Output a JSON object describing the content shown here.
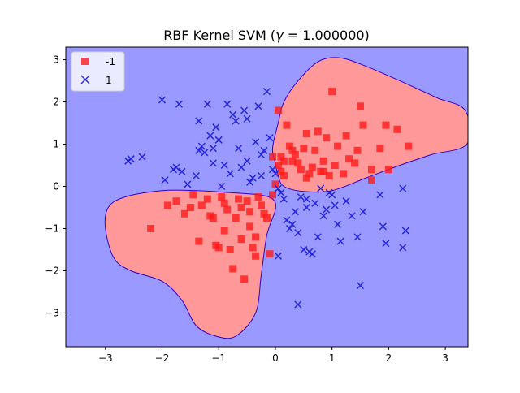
{
  "chart_data": {
    "type": "scatter",
    "title": "RBF Kernel SVM (γ = 1.000000)",
    "title_parts": {
      "prefix": "RBF Kernel SVM (",
      "symbol": "γ",
      "suffix": " = 1.000000)"
    },
    "xlabel": "",
    "ylabel": "",
    "xlim": [
      -3.7,
      3.4
    ],
    "ylim": [
      -3.8,
      3.3
    ],
    "x_ticks": [
      -3,
      -2,
      -1,
      0,
      1,
      2,
      3
    ],
    "y_ticks": [
      -3,
      -2,
      -1,
      0,
      1,
      2,
      3
    ],
    "tick_labels": {
      "x": [
        "−3",
        "−2",
        "−1",
        "0",
        "1",
        "2",
        "3"
      ],
      "y": [
        "−3",
        "−2",
        "−1",
        "0",
        "1",
        "2",
        "3"
      ]
    },
    "grid": false,
    "legend": {
      "placement": "top-left"
    },
    "colors": {
      "negative_region": "#9999ff",
      "positive_region": "#ff9999",
      "boundary": "#3300cc",
      "negative_marker": "#ff1a1a",
      "positive_marker": "#1a1ad9"
    },
    "decision_regions": [
      {
        "class": "-1",
        "label": "upper-right region",
        "boundary": [
          [
            0.0,
            0.55
          ],
          [
            -0.05,
            0.9
          ],
          [
            0.05,
            1.5
          ],
          [
            0.15,
            2.0
          ],
          [
            0.4,
            2.5
          ],
          [
            0.75,
            2.95
          ],
          [
            1.1,
            3.05
          ],
          [
            1.5,
            2.9
          ],
          [
            2.2,
            2.5
          ],
          [
            2.85,
            2.1
          ],
          [
            3.35,
            1.8
          ],
          [
            3.38,
            1.0
          ],
          [
            2.75,
            0.75
          ],
          [
            2.2,
            0.5
          ],
          [
            1.6,
            0.2
          ],
          [
            1.0,
            -0.1
          ],
          [
            0.5,
            -0.12
          ],
          [
            0.15,
            0.0
          ],
          [
            0.05,
            0.25
          ]
        ]
      },
      {
        "class": "-1",
        "label": "lower-left region",
        "boundary": [
          [
            -3.0,
            -1.0
          ],
          [
            -2.95,
            -0.5
          ],
          [
            -2.65,
            -0.25
          ],
          [
            -2.0,
            -0.1
          ],
          [
            -1.4,
            -0.1
          ],
          [
            -0.8,
            -0.15
          ],
          [
            -0.3,
            -0.2
          ],
          [
            -0.05,
            -0.3
          ],
          [
            0.0,
            -0.55
          ],
          [
            -0.15,
            -1.15
          ],
          [
            -0.25,
            -2.1
          ],
          [
            -0.35,
            -3.0
          ],
          [
            -0.7,
            -3.55
          ],
          [
            -1.05,
            -3.55
          ],
          [
            -1.4,
            -3.3
          ],
          [
            -1.65,
            -2.7
          ],
          [
            -2.0,
            -2.25
          ],
          [
            -2.55,
            -2.0
          ],
          [
            -2.85,
            -1.7
          ]
        ]
      }
    ],
    "series": [
      {
        "name": "-1",
        "marker": "square",
        "points": [
          [
            -2.2,
            -1.0
          ],
          [
            -1.9,
            -0.45
          ],
          [
            -1.75,
            -0.35
          ],
          [
            -1.6,
            -0.65
          ],
          [
            -1.5,
            -0.5
          ],
          [
            -1.45,
            -0.2
          ],
          [
            -1.35,
            -1.3
          ],
          [
            -1.3,
            -0.45
          ],
          [
            -1.2,
            -0.3
          ],
          [
            -1.15,
            -0.7
          ],
          [
            -1.1,
            -0.75
          ],
          [
            -1.05,
            -1.4
          ],
          [
            -1.0,
            -1.45
          ],
          [
            -0.95,
            -0.25
          ],
          [
            -0.9,
            -0.4
          ],
          [
            -0.85,
            -0.55
          ],
          [
            -0.8,
            -1.5
          ],
          [
            -0.75,
            -1.95
          ],
          [
            -0.7,
            -0.75
          ],
          [
            -0.65,
            -0.3
          ],
          [
            -0.6,
            -1.25
          ],
          [
            -0.55,
            -2.2
          ],
          [
            -0.5,
            -0.35
          ],
          [
            -0.45,
            -0.6
          ],
          [
            -0.4,
            -1.45
          ],
          [
            -0.35,
            -1.2
          ],
          [
            -0.3,
            -0.25
          ],
          [
            -0.25,
            -0.45
          ],
          [
            -0.2,
            -0.65
          ],
          [
            -0.15,
            -0.75
          ],
          [
            -0.1,
            -1.6
          ],
          [
            -0.05,
            -0.2
          ],
          [
            -0.35,
            -1.65
          ],
          [
            -0.6,
            -0.5
          ],
          [
            -0.9,
            -1.05
          ],
          [
            -0.45,
            -0.95
          ],
          [
            0.0,
            0.05
          ],
          [
            0.05,
            1.8
          ],
          [
            0.05,
            0.5
          ],
          [
            0.1,
            0.35
          ],
          [
            0.15,
            0.25
          ],
          [
            0.2,
            1.45
          ],
          [
            0.25,
            0.95
          ],
          [
            0.3,
            0.6
          ],
          [
            0.35,
            0.75
          ],
          [
            0.4,
            0.55
          ],
          [
            0.45,
            0.4
          ],
          [
            0.5,
            0.9
          ],
          [
            0.55,
            1.25
          ],
          [
            0.6,
            0.3
          ],
          [
            0.65,
            0.45
          ],
          [
            0.7,
            0.85
          ],
          [
            0.75,
            1.3
          ],
          [
            0.8,
            0.35
          ],
          [
            0.85,
            0.6
          ],
          [
            0.9,
            1.15
          ],
          [
            0.95,
            0.25
          ],
          [
            1.0,
            2.25
          ],
          [
            1.05,
            0.5
          ],
          [
            1.1,
            0.95
          ],
          [
            1.2,
            0.3
          ],
          [
            1.25,
            1.2
          ],
          [
            1.3,
            0.65
          ],
          [
            1.4,
            0.55
          ],
          [
            1.45,
            0.85
          ],
          [
            1.5,
            1.9
          ],
          [
            1.55,
            1.45
          ],
          [
            1.7,
            0.15
          ],
          [
            1.85,
            0.9
          ],
          [
            1.95,
            1.45
          ],
          [
            2.0,
            0.4
          ],
          [
            2.15,
            1.35
          ],
          [
            2.35,
            0.95
          ],
          [
            1.7,
            0.4
          ],
          [
            0.15,
            0.6
          ],
          [
            0.3,
            0.85
          ],
          [
            0.55,
            0.2
          ],
          [
            0.85,
            0.35
          ],
          [
            -0.05,
            0.7
          ],
          [
            0.1,
            0.7
          ]
        ]
      },
      {
        "name": "1",
        "marker": "x",
        "points": [
          [
            -2.6,
            0.6
          ],
          [
            -2.55,
            0.65
          ],
          [
            -2.35,
            0.7
          ],
          [
            -2.0,
            2.05
          ],
          [
            -1.95,
            0.15
          ],
          [
            -1.8,
            0.4
          ],
          [
            -1.75,
            0.45
          ],
          [
            -1.7,
            1.95
          ],
          [
            -1.65,
            0.35
          ],
          [
            -1.55,
            0.05
          ],
          [
            -1.4,
            0.25
          ],
          [
            -1.35,
            1.55
          ],
          [
            -1.3,
            0.95
          ],
          [
            -1.25,
            0.8
          ],
          [
            -1.2,
            1.95
          ],
          [
            -1.15,
            1.2
          ],
          [
            -1.1,
            0.9
          ],
          [
            -1.05,
            1.4
          ],
          [
            -1.0,
            1.1
          ],
          [
            -0.95,
            0.0
          ],
          [
            -0.9,
            0.5
          ],
          [
            -0.85,
            1.95
          ],
          [
            -0.8,
            0.3
          ],
          [
            -0.75,
            1.7
          ],
          [
            -0.7,
            1.55
          ],
          [
            -0.65,
            0.9
          ],
          [
            -0.6,
            0.45
          ],
          [
            -0.55,
            1.8
          ],
          [
            -0.5,
            0.6
          ],
          [
            -0.45,
            0.1
          ],
          [
            -0.4,
            0.2
          ],
          [
            -0.35,
            1.05
          ],
          [
            -0.3,
            1.9
          ],
          [
            -0.25,
            0.75
          ],
          [
            -0.2,
            0.85
          ],
          [
            -0.15,
            2.25
          ],
          [
            -0.1,
            1.15
          ],
          [
            -0.05,
            0.4
          ],
          [
            0.0,
            0.3
          ],
          [
            0.05,
            -0.05
          ],
          [
            0.1,
            -0.15
          ],
          [
            0.15,
            -0.3
          ],
          [
            0.2,
            -0.8
          ],
          [
            0.25,
            -1.0
          ],
          [
            0.3,
            -0.9
          ],
          [
            0.35,
            -0.6
          ],
          [
            0.4,
            -1.1
          ],
          [
            0.45,
            -0.25
          ],
          [
            0.5,
            -1.5
          ],
          [
            0.55,
            -0.5
          ],
          [
            0.6,
            -1.55
          ],
          [
            0.65,
            -1.6
          ],
          [
            0.7,
            -0.4
          ],
          [
            0.75,
            -1.2
          ],
          [
            0.8,
            -0.05
          ],
          [
            0.85,
            -0.7
          ],
          [
            0.9,
            -0.55
          ],
          [
            0.95,
            -0.15
          ],
          [
            1.0,
            -0.2
          ],
          [
            1.05,
            -0.45
          ],
          [
            1.1,
            -0.9
          ],
          [
            1.15,
            -1.3
          ],
          [
            1.25,
            -0.35
          ],
          [
            1.35,
            -0.7
          ],
          [
            1.45,
            -1.2
          ],
          [
            1.5,
            -2.35
          ],
          [
            1.55,
            -0.6
          ],
          [
            1.85,
            -0.2
          ],
          [
            1.9,
            -0.95
          ],
          [
            1.95,
            -1.35
          ],
          [
            2.25,
            -0.05
          ],
          [
            2.25,
            -1.45
          ],
          [
            2.3,
            -1.05
          ],
          [
            0.4,
            -2.8
          ],
          [
            0.05,
            -1.65
          ],
          [
            -0.25,
            0.25
          ],
          [
            -0.5,
            1.6
          ],
          [
            -1.1,
            0.55
          ],
          [
            0.55,
            -0.3
          ],
          [
            -1.35,
            0.85
          ]
        ]
      }
    ]
  }
}
